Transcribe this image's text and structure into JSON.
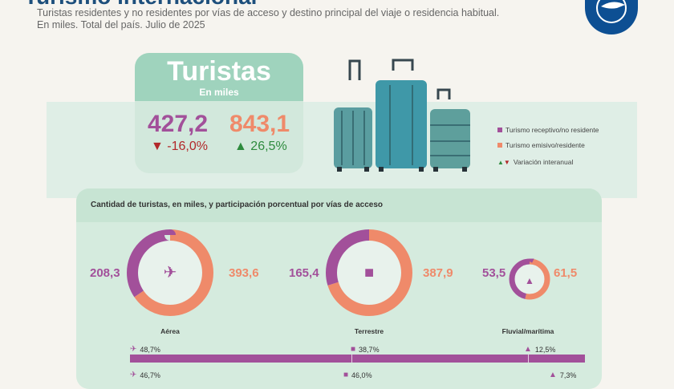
{
  "header": {
    "title": "Turismo internacional",
    "subtitle_1": "Turistas residentes y no residentes por vías de acceso y destino principal del viaje o residencia habitual.",
    "subtitle_2": "En miles. Total del país. Julio de 2025",
    "logo_icon": "globe-plane-icon"
  },
  "summary": {
    "title": "Turistas",
    "unit": "En miles",
    "receptive": {
      "value": "427,2",
      "variation": "-16,0%",
      "direction": "down"
    },
    "emissive": {
      "value": "843,1",
      "variation": "26,5%",
      "direction": "up"
    }
  },
  "legend": {
    "receptive": "Turismo receptivo/no residente",
    "emissive": "Turismo emisivo/residente",
    "variation": "Variación interanual"
  },
  "colors": {
    "receptive": "#a2509a",
    "emissive": "#ef8a6a",
    "up": "#2e8b3e",
    "down": "#b2282a",
    "accent": "#0d4f93"
  },
  "section": {
    "title": "Cantidad de turistas, en miles, y participación porcentual por vías de acceso",
    "modes": [
      {
        "name": "Aérea",
        "icon": "airplane-icon",
        "receptive": 208.3,
        "emissive": 393.6,
        "receptive_label": "208,3",
        "emissive_label": "393,6",
        "receptive_pct": "48,7%",
        "emissive_pct": "46,7%",
        "receptive_share": 48.7,
        "emissive_share": 46.7
      },
      {
        "name": "Terrestre",
        "icon": "car-icon",
        "receptive": 165.4,
        "emissive": 387.9,
        "receptive_label": "165,4",
        "emissive_label": "387,9",
        "receptive_pct": "38,7%",
        "emissive_pct": "46,0%",
        "receptive_share": 38.7,
        "emissive_share": 46.0
      },
      {
        "name": "Fluvial/marítima",
        "icon": "ship-icon",
        "receptive": 53.5,
        "emissive": 61.5,
        "receptive_label": "53,5",
        "emissive_label": "61,5",
        "receptive_pct": "12,5%",
        "emissive_pct": "7,3%",
        "receptive_share": 12.5,
        "emissive_share": 7.3
      }
    ]
  }
}
